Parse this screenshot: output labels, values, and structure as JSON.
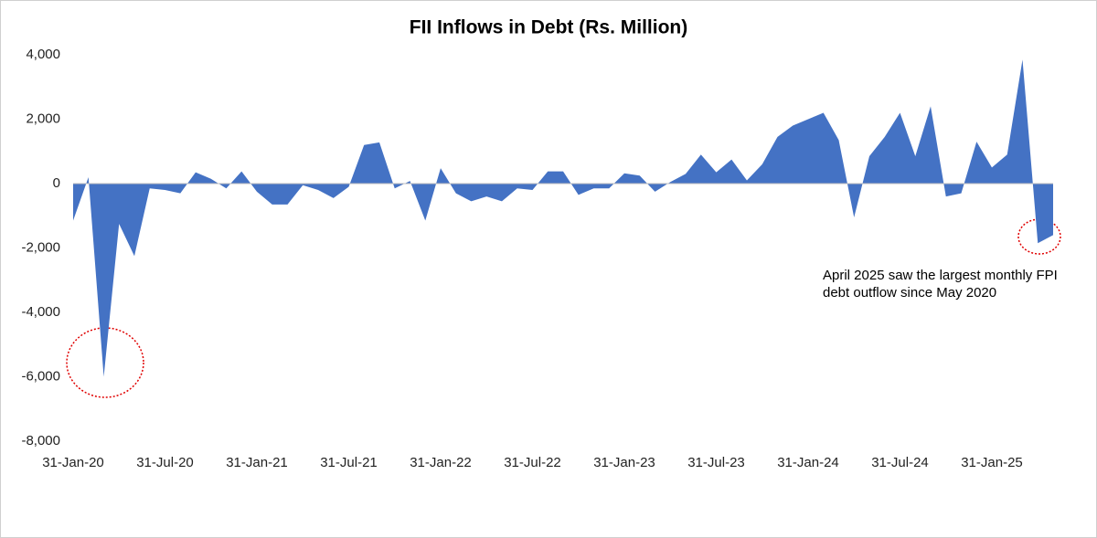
{
  "chart_data": {
    "type": "area",
    "title": "FII Inflows in Debt (Rs. Million)",
    "categories": [
      "31-Jan-20",
      null,
      null,
      null,
      null,
      null,
      "31-Jul-20",
      null,
      null,
      null,
      null,
      null,
      "31-Jan-21",
      null,
      null,
      null,
      null,
      null,
      "31-Jul-21",
      null,
      null,
      null,
      null,
      null,
      "31-Jan-22",
      null,
      null,
      null,
      null,
      null,
      "31-Jul-22",
      null,
      null,
      null,
      null,
      null,
      "31-Jan-23",
      null,
      null,
      null,
      null,
      null,
      "31-Jul-23",
      null,
      null,
      null,
      null,
      null,
      "31-Jan-24",
      null,
      null,
      null,
      null,
      null,
      "31-Jul-24",
      null,
      null,
      null,
      null,
      null,
      "31-Jan-25",
      null,
      null,
      null,
      null
    ],
    "series": [
      {
        "name": "FII Inflows in Debt",
        "color": "#4472c4",
        "values": [
          -1150,
          200,
          -6000,
          -1250,
          -2250,
          -150,
          -200,
          -300,
          350,
          150,
          -150,
          380,
          -250,
          -650,
          -650,
          -50,
          -200,
          -450,
          -100,
          1200,
          1280,
          -150,
          80,
          -1150,
          480,
          -300,
          -550,
          -400,
          -550,
          -150,
          -200,
          380,
          380,
          -350,
          -150,
          -150,
          320,
          250,
          -250,
          50,
          300,
          900,
          350,
          750,
          100,
          600,
          1450,
          1800,
          2000,
          2200,
          1350,
          -1050,
          850,
          1450,
          2200,
          850,
          2400,
          -400,
          -300,
          1300,
          500,
          900,
          3850,
          -1850,
          -1600
        ]
      }
    ],
    "ylim": [
      -8000,
      4000
    ],
    "yticks": [
      {
        "value": -8000,
        "label": "-8,000"
      },
      {
        "value": -6000,
        "label": "-6,000"
      },
      {
        "value": -4000,
        "label": "-4,000"
      },
      {
        "value": -2000,
        "label": "-2,000"
      },
      0,
      {
        "value": 2000,
        "label": "2,000"
      },
      {
        "value": 4000,
        "label": "4,000"
      }
    ],
    "annotation": "April 2025 saw the largest monthly FPI debt outflow since May 2020"
  }
}
